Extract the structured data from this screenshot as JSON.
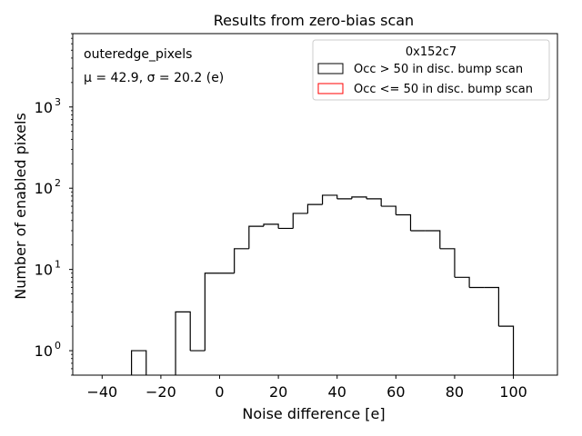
{
  "chart_data": {
    "type": "histogram",
    "title": "Results from zero-bias scan",
    "xlabel": "Noise difference [e]",
    "ylabel": "Number of enabled pixels",
    "xlim": [
      -50,
      115
    ],
    "ylim": [
      0.5,
      8000
    ],
    "yscale": "log",
    "grid": false,
    "x_ticks": [
      -40,
      -20,
      0,
      20,
      40,
      60,
      80,
      100
    ],
    "x_tick_labels": [
      "−40",
      "−20",
      "0",
      "20",
      "40",
      "60",
      "80",
      "100"
    ],
    "y_ticks": [
      1,
      10,
      100,
      1000
    ],
    "y_tick_labels": [
      {
        "base": "10",
        "exp": "0"
      },
      {
        "base": "10",
        "exp": "1"
      },
      {
        "base": "10",
        "exp": "2"
      },
      {
        "base": "10",
        "exp": "3"
      }
    ],
    "annotations": {
      "line1": "outeredge_pixels",
      "line2": "μ = 42.9, σ = 20.2 (e)"
    },
    "legend": {
      "title": "0x152c7",
      "position": "upper right",
      "entries": [
        {
          "label": "Occ > 50 in disc. bump scan",
          "color": "#000000"
        },
        {
          "label": "Occ <= 50 in disc. bump scan",
          "color": "#ff0000"
        }
      ]
    },
    "series": [
      {
        "color": "#000000",
        "bins": [
          {
            "x0": -30,
            "x1": -25,
            "value": 1
          },
          {
            "x0": -25,
            "x1": -20,
            "value": 0
          },
          {
            "x0": -20,
            "x1": -15,
            "value": 0
          },
          {
            "x0": -15,
            "x1": -10,
            "value": 3
          },
          {
            "x0": -10,
            "x1": -5,
            "value": 1
          },
          {
            "x0": -5,
            "x1": 0,
            "value": 9
          },
          {
            "x0": 0,
            "x1": 5,
            "value": 9
          },
          {
            "x0": 5,
            "x1": 10,
            "value": 18
          },
          {
            "x0": 10,
            "x1": 15,
            "value": 34
          },
          {
            "x0": 15,
            "x1": 20,
            "value": 36
          },
          {
            "x0": 20,
            "x1": 25,
            "value": 32
          },
          {
            "x0": 25,
            "x1": 30,
            "value": 49
          },
          {
            "x0": 30,
            "x1": 35,
            "value": 63
          },
          {
            "x0": 35,
            "x1": 40,
            "value": 82
          },
          {
            "x0": 40,
            "x1": 45,
            "value": 74
          },
          {
            "x0": 45,
            "x1": 50,
            "value": 78
          },
          {
            "x0": 50,
            "x1": 55,
            "value": 74
          },
          {
            "x0": 55,
            "x1": 60,
            "value": 60
          },
          {
            "x0": 60,
            "x1": 65,
            "value": 47
          },
          {
            "x0": 65,
            "x1": 70,
            "value": 30
          },
          {
            "x0": 70,
            "x1": 75,
            "value": 30
          },
          {
            "x0": 75,
            "x1": 80,
            "value": 18
          },
          {
            "x0": 80,
            "x1": 85,
            "value": 8
          },
          {
            "x0": 85,
            "x1": 90,
            "value": 6
          },
          {
            "x0": 90,
            "x1": 95,
            "value": 6
          },
          {
            "x0": 95,
            "x1": 100,
            "value": 2
          }
        ]
      },
      {
        "color": "#ff0000",
        "bins": []
      }
    ]
  }
}
